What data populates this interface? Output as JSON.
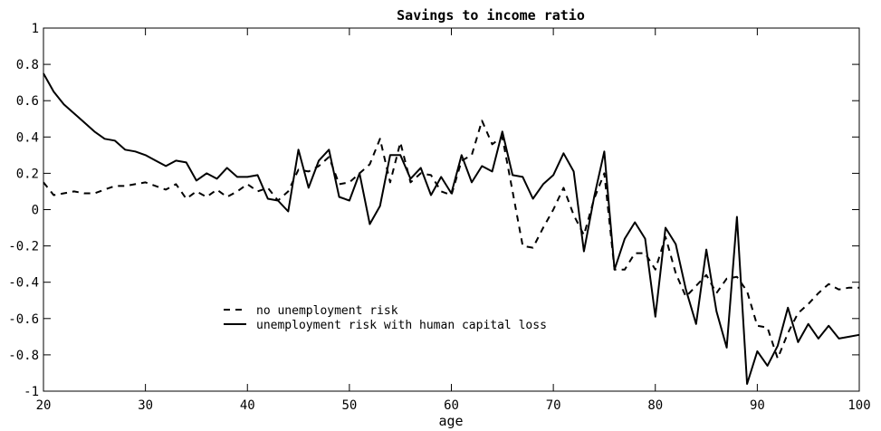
{
  "chart_data": {
    "type": "line",
    "title": "Savings to income ratio",
    "xlabel": "age",
    "ylabel": "",
    "xlim": [
      20,
      100
    ],
    "ylim": [
      -1,
      1
    ],
    "xticks": [
      "20",
      "30",
      "40",
      "50",
      "60",
      "70",
      "80",
      "90",
      "100"
    ],
    "yticks": [
      "1",
      "0.8",
      "0.6",
      "0.4",
      "0.2",
      "0",
      "-0.2",
      "-0.4",
      "-0.6",
      "-0.8",
      "-1"
    ],
    "grid": false,
    "legend_position": "lower-left",
    "x": [
      20,
      21,
      22,
      23,
      24,
      25,
      26,
      27,
      28,
      29,
      30,
      31,
      32,
      33,
      34,
      35,
      36,
      37,
      38,
      39,
      40,
      41,
      42,
      43,
      44,
      45,
      46,
      47,
      48,
      49,
      50,
      51,
      52,
      53,
      54,
      55,
      56,
      57,
      58,
      59,
      60,
      61,
      62,
      63,
      64,
      65,
      66,
      67,
      68,
      69,
      70,
      71,
      72,
      73,
      74,
      75,
      76,
      77,
      78,
      79,
      80,
      81,
      82,
      83,
      84,
      85,
      86,
      87,
      88,
      89,
      90,
      91,
      92,
      93,
      94,
      95,
      96,
      97,
      98,
      99,
      100
    ],
    "series": [
      {
        "name": "no unemployment risk",
        "style": "dashed",
        "color": "#000000",
        "values": [
          0.15,
          0.08,
          0.09,
          0.1,
          0.09,
          0.09,
          0.11,
          0.13,
          0.13,
          0.14,
          0.15,
          0.13,
          0.11,
          0.14,
          0.06,
          0.1,
          0.07,
          0.11,
          0.07,
          0.1,
          0.14,
          0.1,
          0.12,
          0.05,
          0.1,
          0.22,
          0.21,
          0.24,
          0.29,
          0.14,
          0.15,
          0.2,
          0.25,
          0.39,
          0.15,
          0.37,
          0.15,
          0.2,
          0.19,
          0.1,
          0.08,
          0.27,
          0.3,
          0.49,
          0.36,
          0.4,
          0.1,
          -0.2,
          -0.21,
          -0.1,
          0.0,
          0.12,
          -0.03,
          -0.14,
          0.06,
          0.2,
          -0.33,
          -0.33,
          -0.24,
          -0.24,
          -0.33,
          -0.15,
          -0.35,
          -0.48,
          -0.42,
          -0.36,
          -0.46,
          -0.38,
          -0.37,
          -0.45,
          -0.64,
          -0.65,
          -0.82,
          -0.68,
          -0.57,
          -0.52,
          -0.46,
          -0.41,
          -0.44,
          -0.43,
          -0.43
        ]
      },
      {
        "name": "unemployment risk with human capital loss",
        "style": "solid",
        "color": "#000000",
        "values": [
          0.75,
          0.65,
          0.58,
          0.53,
          0.48,
          0.43,
          0.39,
          0.38,
          0.33,
          0.32,
          0.3,
          0.27,
          0.24,
          0.27,
          0.26,
          0.16,
          0.2,
          0.17,
          0.23,
          0.18,
          0.18,
          0.19,
          0.06,
          0.05,
          -0.01,
          0.33,
          0.12,
          0.27,
          0.33,
          0.07,
          0.05,
          0.2,
          -0.08,
          0.02,
          0.3,
          0.3,
          0.17,
          0.23,
          0.08,
          0.18,
          0.09,
          0.3,
          0.15,
          0.24,
          0.21,
          0.43,
          0.19,
          0.18,
          0.06,
          0.14,
          0.19,
          0.31,
          0.21,
          -0.23,
          0.07,
          0.32,
          -0.33,
          -0.16,
          -0.07,
          -0.16,
          -0.59,
          -0.1,
          -0.19,
          -0.44,
          -0.63,
          -0.22,
          -0.56,
          -0.76,
          -0.04,
          -0.96,
          -0.78,
          -0.86,
          -0.75,
          -0.54,
          -0.73,
          -0.63,
          -0.71,
          -0.64,
          -0.71,
          -0.7,
          -0.69
        ]
      }
    ]
  }
}
